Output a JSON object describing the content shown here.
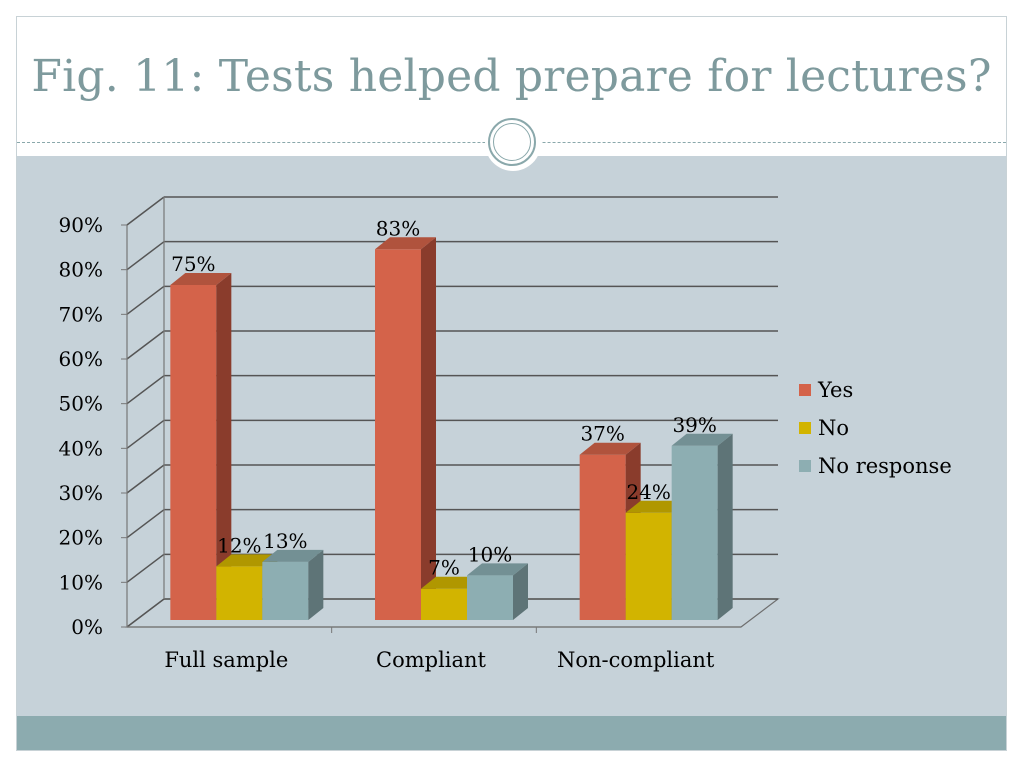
{
  "slide": {
    "title": "Fig. 11: Tests helped prepare for lectures?"
  },
  "colors": {
    "background": "#c6d2d9",
    "title": "#7e9a9d",
    "band": "#8cabaf"
  },
  "chart_data": {
    "type": "bar",
    "title": "",
    "xlabel": "",
    "ylabel": "",
    "categories": [
      "Full sample",
      "Compliant",
      "Non-compliant"
    ],
    "series": [
      {
        "name": "Yes",
        "values": [
          75,
          83,
          37
        ],
        "labels": [
          "75%",
          "83%",
          "37%"
        ],
        "color": "#d4634a",
        "side_color": "#8a3c2c",
        "top_color": "#b0533d"
      },
      {
        "name": "No",
        "values": [
          12,
          7,
          24
        ],
        "labels": [
          "12%",
          "7%",
          "24%"
        ],
        "color": "#d2b400",
        "side_color": "#8f7a00",
        "top_color": "#b09700"
      },
      {
        "name": "No response",
        "values": [
          13,
          10,
          39
        ],
        "labels": [
          "13%",
          "10%",
          "39%"
        ],
        "color": "#8daeb2",
        "side_color": "#5e7477",
        "top_color": "#739094"
      }
    ],
    "ylim": [
      0,
      90
    ],
    "yticks": [
      "0%",
      "10%",
      "20%",
      "30%",
      "40%",
      "50%",
      "60%",
      "70%",
      "80%",
      "90%"
    ],
    "grid": true,
    "legend": "right",
    "style": "3d-clustered-column"
  }
}
